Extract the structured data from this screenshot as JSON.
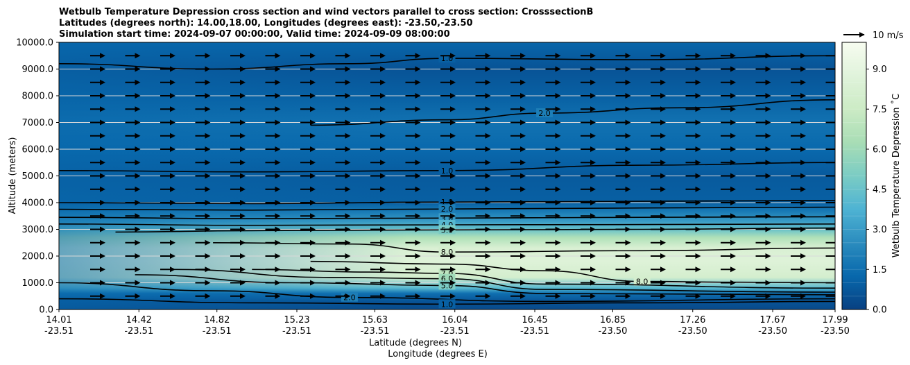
{
  "chart_data": {
    "type": "heatmap",
    "title_lines": [
      "Wetbulb Temperature Depression cross section and wind vectors parallel to cross section: CrosssectionB",
      "Latitudes (degrees north): 14.00,18.00, Longitudes (degrees east): -23.50,-23.50",
      "Simulation start time: 2024-09-07 00:00:00, Valid time: 2024-09-09 08:00:00"
    ],
    "xlabel_lat": "Latitude (degrees N)",
    "xlabel_lon": "Longitude (degrees E)",
    "ylabel": "Altitude (meters)",
    "x_ticks": [
      {
        "lat": "14.01",
        "lon": "-23.51"
      },
      {
        "lat": "14.42",
        "lon": "-23.51"
      },
      {
        "lat": "14.82",
        "lon": "-23.51"
      },
      {
        "lat": "15.23",
        "lon": "-23.51"
      },
      {
        "lat": "15.63",
        "lon": "-23.51"
      },
      {
        "lat": "16.04",
        "lon": "-23.51"
      },
      {
        "lat": "16.45",
        "lon": "-23.51"
      },
      {
        "lat": "16.85",
        "lon": "-23.50"
      },
      {
        "lat": "17.26",
        "lon": "-23.50"
      },
      {
        "lat": "17.67",
        "lon": "-23.50"
      },
      {
        "lat": "17.99",
        "lon": "-23.50"
      }
    ],
    "x_range": [
      14.01,
      17.99
    ],
    "y_ticks": [
      "0.0",
      "1000.0",
      "2000.0",
      "3000.0",
      "4000.0",
      "5000.0",
      "6000.0",
      "7000.0",
      "8000.0",
      "9000.0",
      "10000.0"
    ],
    "ylim": [
      0,
      10000
    ],
    "grid": "horizontal",
    "colorbar": {
      "label": "Wetbulb Temperature Depression $^\\circ$C",
      "label_display": "Wetbulb Temperature Depression ˚C",
      "ticks": [
        "0.0",
        "1.5",
        "3.0",
        "4.5",
        "6.0",
        "7.5",
        "9.0"
      ],
      "range": [
        0,
        10
      ],
      "colormap": "GnBu_r",
      "stops": [
        "#084081",
        "#0868ac",
        "#2b8cbe",
        "#4eb3d3",
        "#7bccc4",
        "#a8ddb5",
        "#ccebc5",
        "#e0f3db",
        "#f7fcf0"
      ]
    },
    "quiver_key": "10 m/s",
    "profile": [
      {
        "z": 0,
        "v": 0.3
      },
      {
        "z": 300,
        "v": 0.6
      },
      {
        "z": 600,
        "v": 1.5
      },
      {
        "z": 800,
        "v": 4.0
      },
      {
        "z": 1200,
        "v": 8.0
      },
      {
        "z": 1800,
        "v": 8.6
      },
      {
        "z": 2300,
        "v": 8.3
      },
      {
        "z": 2700,
        "v": 6.5
      },
      {
        "z": 3000,
        "v": 4.5
      },
      {
        "z": 3300,
        "v": 3.0
      },
      {
        "z": 3700,
        "v": 1.8
      },
      {
        "z": 4000,
        "v": 1.0
      },
      {
        "z": 5000,
        "v": 0.8
      },
      {
        "z": 6000,
        "v": 1.3
      },
      {
        "z": 7000,
        "v": 1.6
      },
      {
        "z": 8000,
        "v": 1.0
      },
      {
        "z": 9000,
        "v": 0.6
      },
      {
        "z": 10000,
        "v": 1.2
      }
    ],
    "contour_lines": [
      {
        "level": "1.0",
        "label": "1.0",
        "points": [
          [
            14.01,
            4000
          ],
          [
            15.0,
            3960
          ],
          [
            16.0,
            4020
          ],
          [
            17.0,
            4050
          ],
          [
            17.99,
            4080
          ]
        ]
      },
      {
        "level": "2.0",
        "label": "2.0",
        "points": [
          [
            14.01,
            3750
          ],
          [
            15.0,
            3720
          ],
          [
            16.0,
            3760
          ],
          [
            17.0,
            3800
          ],
          [
            17.99,
            3830
          ]
        ]
      },
      {
        "level": "3.0",
        "label": "3.0",
        "points": [
          [
            14.01,
            3450
          ],
          [
            15.0,
            3400
          ],
          [
            16.0,
            3420
          ],
          [
            17.0,
            3450
          ],
          [
            17.99,
            3470
          ]
        ]
      },
      {
        "level": "4.0",
        "label": "4.0",
        "points": [
          [
            14.01,
            3200
          ],
          [
            15.0,
            3150
          ],
          [
            16.0,
            3170
          ],
          [
            17.0,
            3180
          ],
          [
            17.99,
            3200
          ]
        ]
      },
      {
        "level": "5.0",
        "label": "5.0",
        "points": [
          [
            14.3,
            2900
          ],
          [
            15.0,
            2950
          ],
          [
            16.0,
            2980
          ],
          [
            17.0,
            3000
          ],
          [
            17.99,
            3050
          ]
        ]
      },
      {
        "level": "8.0",
        "label": "8.0",
        "points": [
          [
            14.8,
            2500
          ],
          [
            15.5,
            2450
          ],
          [
            16.0,
            2150
          ],
          [
            17.0,
            2200
          ],
          [
            17.99,
            2300
          ]
        ]
      },
      {
        "level": "8.0",
        "label": "8.0",
        "points": [
          [
            15.3,
            1800
          ],
          [
            16.0,
            1700
          ],
          [
            16.5,
            1450
          ],
          [
            17.0,
            1050
          ],
          [
            17.5,
            1020
          ],
          [
            17.99,
            1000
          ]
        ]
      },
      {
        "level": "7.0",
        "label": "7.0",
        "points": [
          [
            15.0,
            1500
          ],
          [
            15.6,
            1400
          ],
          [
            16.0,
            1350
          ],
          [
            16.5,
            950
          ],
          [
            17.99,
            800
          ]
        ]
      },
      {
        "level": "6.0",
        "label": "6.0",
        "points": [
          [
            14.6,
            1500
          ],
          [
            15.4,
            1200
          ],
          [
            16.0,
            1150
          ],
          [
            16.5,
            750
          ],
          [
            17.99,
            650
          ]
        ]
      },
      {
        "level": "5.0",
        "label": "5.0",
        "points": [
          [
            14.4,
            1300
          ],
          [
            15.2,
            1000
          ],
          [
            16.0,
            900
          ],
          [
            16.5,
            600
          ],
          [
            17.99,
            550
          ]
        ]
      },
      {
        "level": "2.0",
        "label": "2.0",
        "points": [
          [
            14.01,
            1000
          ],
          [
            14.8,
            700
          ],
          [
            15.5,
            450
          ],
          [
            16.5,
            300
          ],
          [
            17.99,
            400
          ]
        ]
      },
      {
        "level": "1.0",
        "label": "1.0",
        "points": [
          [
            14.01,
            400
          ],
          [
            15.0,
            250
          ],
          [
            16.0,
            200
          ],
          [
            17.0,
            250
          ],
          [
            17.99,
            300
          ]
        ]
      },
      {
        "level": "1.0",
        "label": "1.0",
        "points": [
          [
            14.01,
            5200
          ],
          [
            15.0,
            5150
          ],
          [
            16.0,
            5200
          ],
          [
            17.0,
            5400
          ],
          [
            17.99,
            5500
          ]
        ]
      },
      {
        "level": "2.0",
        "label": "2.0",
        "points": [
          [
            15.3,
            6900
          ],
          [
            16.0,
            7100
          ],
          [
            16.5,
            7350
          ],
          [
            17.2,
            7550
          ],
          [
            17.99,
            7850
          ]
        ]
      },
      {
        "level": "1.0",
        "label": "1.0",
        "points": [
          [
            14.01,
            9200
          ],
          [
            14.8,
            9000
          ],
          [
            15.5,
            9200
          ],
          [
            16.0,
            9400
          ],
          [
            17.0,
            9350
          ],
          [
            17.99,
            9500
          ]
        ]
      }
    ],
    "wind": {
      "u_m_s": 8,
      "v_m_s": 0,
      "direction": "northward (left to right)"
    }
  }
}
